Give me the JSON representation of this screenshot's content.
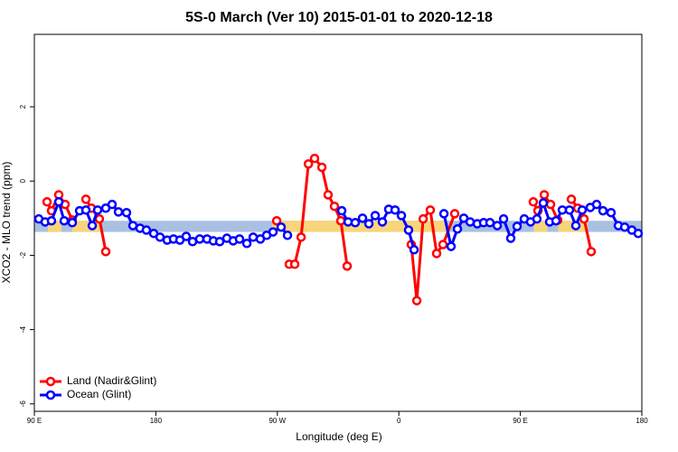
{
  "chart_data": {
    "type": "line",
    "title": "5S-0 March (Ver 10)   2015-01-01 to 2020-12-18",
    "x_label": "Longitude (deg E)",
    "y_label": "XCO2 - MLO trend (ppm)",
    "xlim": [
      90,
      540
    ],
    "xticks": [
      {
        "value": 90,
        "label": "90 E"
      },
      180,
      {
        "value": 270,
        "label": "90 W"
      },
      {
        "value": 360,
        "label": "0"
      },
      {
        "value": 450,
        "label": "90 E"
      },
      {
        "value": 540,
        "label": "180"
      }
    ],
    "ylim": [
      -6.2,
      3.95
    ],
    "yticks": [
      -6,
      -4,
      -2,
      0,
      2
    ],
    "legend": "bottom-left",
    "band": {
      "ylim": [
        -1.37,
        -1.07
      ],
      "color": "#a9c0e2"
    },
    "highlights": {
      "color": "#f7d57a",
      "ranges": [
        [
          100,
          110
        ],
        [
          118,
          140
        ],
        [
          266,
          396
        ],
        [
          460,
          470
        ],
        [
          478,
          500
        ]
      ]
    },
    "series": [
      {
        "name": "Land (Nadir&Glint)",
        "color": "#ff0000",
        "x": [
          99.4,
          102.7,
          108.1,
          112.8,
          118.1,
          null,
          128.2,
          132.2,
          138.2,
          142.9,
          null,
          269.5,
          null,
          278.8,
          282.9,
          287.6,
          293.0,
          297.6,
          303.0,
          307.6,
          312.3,
          317.0,
          321.7,
          null,
          369.2,
          373.3,
          378.0,
          383.3,
          388.0,
          392.7,
          401.4,
          null,
          459.6,
          463.0,
          467.7,
          472.4,
          477.7,
          null,
          487.8,
          492.5,
          497.2,
          502.5
        ],
        "values": [
          -0.56,
          -0.8,
          -0.37,
          -0.63,
          -1.05,
          null,
          -0.49,
          -0.73,
          -1.02,
          -1.9,
          null,
          -1.07,
          null,
          -2.24,
          -2.24,
          -1.51,
          0.46,
          0.61,
          0.37,
          -0.37,
          -0.68,
          -1.07,
          -2.29,
          null,
          -1.71,
          -3.22,
          -1.02,
          -0.78,
          -1.95,
          -1.71,
          -0.88,
          null,
          -0.56,
          -0.8,
          -0.37,
          -0.63,
          -1.05,
          null,
          -0.49,
          -0.73,
          -1.02,
          -1.9
        ]
      },
      {
        "name": "Ocean (Glint)",
        "color": "#0000ff",
        "x": [
          93.3,
          98.0,
          102.7,
          108.1,
          112.1,
          118.1,
          123.5,
          128.2,
          132.9,
          136.9,
          142.9,
          147.6,
          152.3,
          158.3,
          163.0,
          168.3,
          173.0,
          178.4,
          183.1,
          188.4,
          193.1,
          197.8,
          202.5,
          207.2,
          212.5,
          217.9,
          222.6,
          227.3,
          232.6,
          237.3,
          242.0,
          247.4,
          252.1,
          257.4,
          262.1,
          266.8,
          272.8,
          277.5,
          null,
          317.7,
          322.4,
          327.7,
          333.1,
          337.8,
          342.5,
          347.8,
          352.5,
          357.2,
          361.9,
          367.2,
          371.3,
          null,
          393.4,
          398.7,
          403.4,
          408.1,
          412.8,
          418.1,
          422.8,
          427.5,
          432.9,
          437.6,
          442.9,
          447.6,
          452.9,
          457.6,
          462.3,
          467.0,
          471.7,
          476.4,
          481.1,
          486.4,
          491.1,
          495.8,
          501.8,
          506.5,
          511.2,
          517.2,
          522.6,
          527.3,
          532.6,
          537.3
        ],
        "values": [
          -1.02,
          -1.1,
          -1.07,
          -0.56,
          -1.07,
          -1.12,
          -0.8,
          -0.78,
          -1.2,
          -0.78,
          -0.73,
          -0.63,
          -0.83,
          -0.85,
          -1.2,
          -1.27,
          -1.32,
          -1.41,
          -1.51,
          -1.59,
          -1.56,
          -1.59,
          -1.49,
          -1.63,
          -1.56,
          -1.56,
          -1.61,
          -1.63,
          -1.54,
          -1.61,
          -1.56,
          -1.68,
          -1.51,
          -1.56,
          -1.46,
          -1.37,
          -1.24,
          -1.46,
          null,
          -0.8,
          -1.1,
          -1.12,
          -1.0,
          -1.15,
          -0.93,
          -1.1,
          -0.76,
          -0.78,
          -0.93,
          -1.32,
          -1.85,
          null,
          -0.88,
          -1.76,
          -1.29,
          -1.0,
          -1.1,
          -1.15,
          -1.12,
          -1.12,
          -1.2,
          -1.02,
          -1.54,
          -1.22,
          -1.02,
          -1.1,
          -1.02,
          -0.59,
          -1.1,
          -1.07,
          -0.78,
          -0.78,
          -1.2,
          -0.78,
          -0.71,
          -0.63,
          -0.8,
          -0.85,
          -1.2,
          -1.24,
          -1.32,
          -1.41
        ]
      }
    ]
  }
}
